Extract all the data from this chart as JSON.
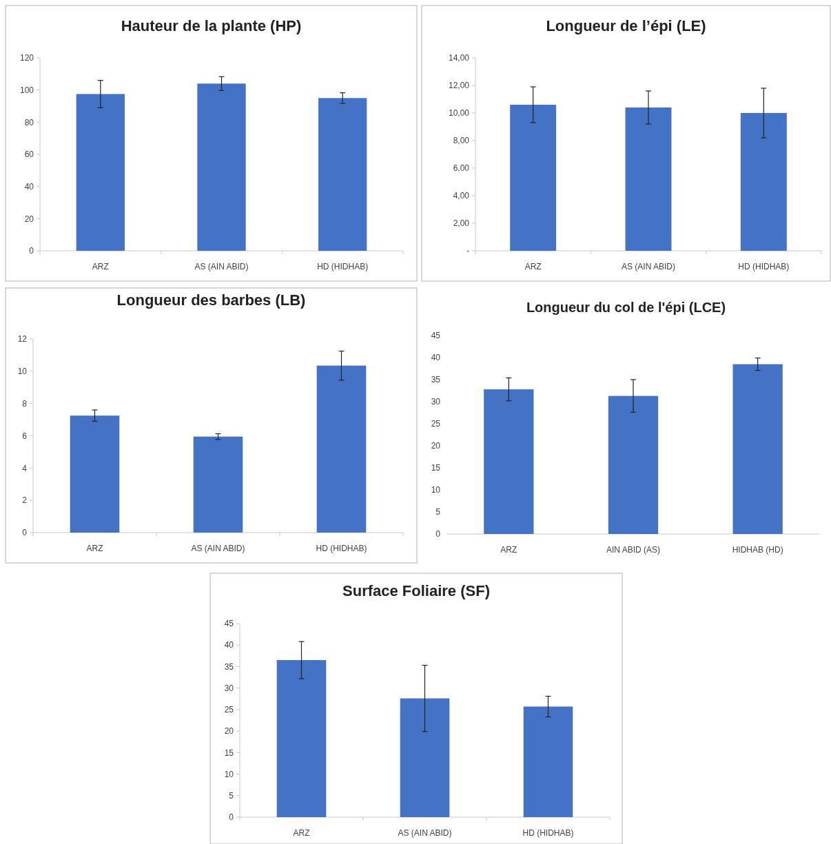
{
  "chart_data": [
    {
      "type": "bar",
      "title": "Hauteur de la plante  (HP)",
      "categories": [
        "ARZ",
        "AS (AIN ABID)",
        "HD (HIDHAB)"
      ],
      "values": [
        97.5,
        104,
        95
      ],
      "errors": [
        8.5,
        4.3,
        3.3
      ],
      "color": "#4472c4",
      "ylim": [
        0,
        120
      ],
      "yticks": [
        0,
        20,
        40,
        60,
        80,
        100,
        120
      ]
    },
    {
      "type": "bar",
      "title": "Longueur de l’épi (LE)",
      "categories": [
        "ARZ",
        "AS (AIN ABID)",
        "HD (HIDHAB)"
      ],
      "values": [
        10.6,
        10.4,
        10.0
      ],
      "errors": [
        1.3,
        1.2,
        1.8
      ],
      "color": "#4472c4",
      "ylim": [
        0,
        14
      ],
      "yticks": [
        {
          "value": 0,
          "label": "-"
        },
        {
          "value": 2,
          "label": "2,00"
        },
        {
          "value": 4,
          "label": "4,00"
        },
        {
          "value": 6,
          "label": "6,00"
        },
        {
          "value": 8,
          "label": "8,00"
        },
        {
          "value": 10,
          "label": "10,00"
        },
        {
          "value": 12,
          "label": "12,00"
        },
        {
          "value": 14,
          "label": "14,00"
        }
      ]
    },
    {
      "type": "bar",
      "title": "Longueur des barbes  (LB)",
      "categories": [
        "ARZ",
        "AS (AIN ABID)",
        "HD (HIDHAB)"
      ],
      "values": [
        7.25,
        5.95,
        10.35
      ],
      "errors": [
        0.35,
        0.18,
        0.9
      ],
      "color": "#4472c4",
      "ylim": [
        0,
        12
      ],
      "yticks": [
        0,
        2,
        4,
        6,
        8,
        10,
        12
      ]
    },
    {
      "type": "bar",
      "title": "Longueur du col de l'épi (LCE)",
      "categories": [
        "ARZ",
        "AIN ABID (AS)",
        "HIDHAB (HD)"
      ],
      "values": [
        32.8,
        31.3,
        38.5
      ],
      "errors": [
        2.6,
        3.7,
        1.4
      ],
      "color": "#4472c4",
      "ylim": [
        0,
        45
      ],
      "yticks": [
        0,
        5,
        10,
        15,
        20,
        25,
        30,
        35,
        40,
        45
      ]
    },
    {
      "type": "bar",
      "title": "Surface Foliaire (SF)",
      "categories": [
        "ARZ",
        "AS (AIN ABID)",
        "HD (HIDHAB)"
      ],
      "values": [
        36.5,
        27.6,
        25.7
      ],
      "errors": [
        4.3,
        7.7,
        2.4
      ],
      "color": "#4472c4",
      "ylim": [
        0,
        45
      ],
      "yticks": [
        0,
        5,
        10,
        15,
        20,
        25,
        30,
        35,
        40,
        45
      ]
    }
  ]
}
